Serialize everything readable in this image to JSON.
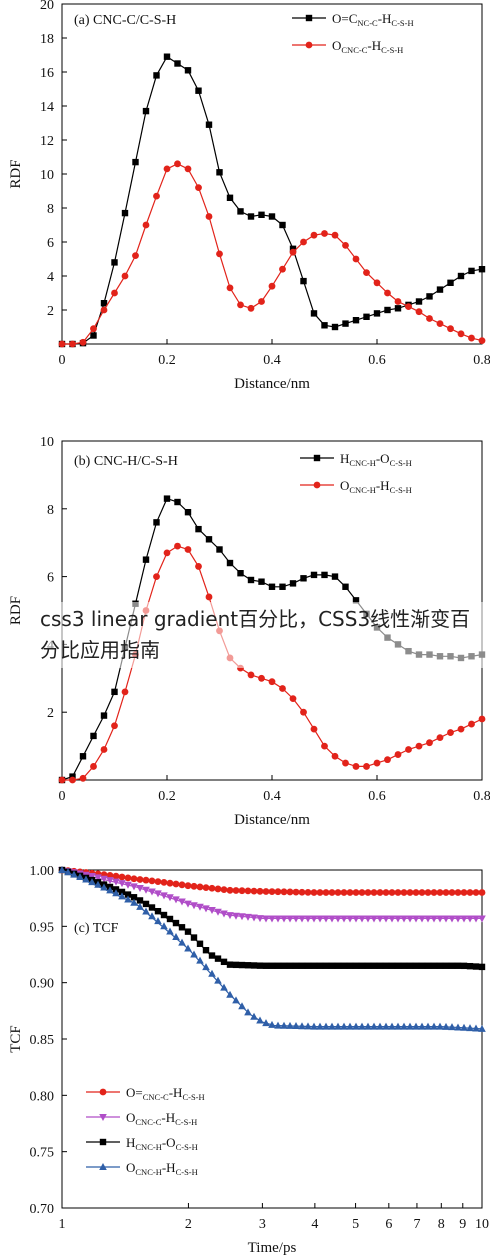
{
  "colors": {
    "black": "#000000",
    "red": "#e2231a",
    "magenta": "#b04ec8",
    "blue": "#2f5fa8"
  },
  "overlay_text": "css3 linear gradient百分比，CSS3线性渐变百分比应用指南",
  "chart_data": [
    {
      "type": "line",
      "title": "(a) CNC-C/C-S-H",
      "xlabel": "Distance/nm",
      "ylabel": "RDF",
      "xlim": [
        0,
        0.8
      ],
      "ylim": [
        0,
        20
      ],
      "xticks": [
        "0",
        "0.2",
        "0.4",
        "0.6",
        "0.8"
      ],
      "yticks": [
        "2",
        "4",
        "6",
        "8",
        "10",
        "12",
        "14",
        "16",
        "18",
        "20"
      ],
      "legend_position": "top-right",
      "series": [
        {
          "name": "O=C_NC-C-H_C-S-H",
          "legend": {
            "main": "O=C",
            "sub1": "NC-C",
            "mid": "-H",
            "sub2": "C-S-H"
          },
          "color": "black",
          "marker": "square",
          "x": [
            0.0,
            0.02,
            0.04,
            0.06,
            0.08,
            0.1,
            0.12,
            0.14,
            0.16,
            0.18,
            0.2,
            0.22,
            0.24,
            0.26,
            0.28,
            0.3,
            0.32,
            0.34,
            0.36,
            0.38,
            0.4,
            0.42,
            0.44,
            0.46,
            0.48,
            0.5,
            0.52,
            0.54,
            0.56,
            0.58,
            0.6,
            0.62,
            0.64,
            0.66,
            0.68,
            0.7,
            0.72,
            0.74,
            0.76,
            0.78,
            0.8
          ],
          "y": [
            0,
            0,
            0.05,
            0.5,
            2.4,
            4.8,
            7.7,
            10.7,
            13.7,
            15.8,
            16.9,
            16.5,
            16.1,
            14.9,
            12.9,
            10.1,
            8.6,
            7.8,
            7.5,
            7.6,
            7.5,
            7.0,
            5.6,
            3.7,
            1.8,
            1.1,
            1.0,
            1.2,
            1.4,
            1.6,
            1.8,
            2.0,
            2.1,
            2.3,
            2.5,
            2.8,
            3.2,
            3.6,
            4.0,
            4.3,
            4.4
          ]
        },
        {
          "name": "O_CNC-C-H_C-S-H",
          "legend": {
            "main": "O",
            "sub1": "CNC-C",
            "mid": "-H",
            "sub2": "C-S-H"
          },
          "color": "red",
          "marker": "circle",
          "x": [
            0.0,
            0.02,
            0.04,
            0.06,
            0.08,
            0.1,
            0.12,
            0.14,
            0.16,
            0.18,
            0.2,
            0.22,
            0.24,
            0.26,
            0.28,
            0.3,
            0.32,
            0.34,
            0.36,
            0.38,
            0.4,
            0.42,
            0.44,
            0.46,
            0.48,
            0.5,
            0.52,
            0.54,
            0.56,
            0.58,
            0.6,
            0.62,
            0.64,
            0.66,
            0.68,
            0.7,
            0.72,
            0.74,
            0.76,
            0.78,
            0.8
          ],
          "y": [
            0,
            0,
            0.1,
            0.9,
            2.0,
            3.0,
            4.0,
            5.2,
            7.0,
            8.7,
            10.3,
            10.6,
            10.3,
            9.2,
            7.5,
            5.3,
            3.3,
            2.3,
            2.1,
            2.5,
            3.4,
            4.4,
            5.4,
            6.0,
            6.4,
            6.5,
            6.4,
            5.8,
            5.0,
            4.2,
            3.6,
            3.0,
            2.5,
            2.2,
            1.9,
            1.5,
            1.2,
            0.9,
            0.6,
            0.35,
            0.2
          ]
        }
      ]
    },
    {
      "type": "line",
      "title": "(b) CNC-H/C-S-H",
      "xlabel": "Distance/nm",
      "ylabel": "RDF",
      "xlim": [
        0,
        0.8
      ],
      "ylim": [
        0,
        10
      ],
      "xticks": [
        "0",
        "0.2",
        "0.4",
        "0.6",
        "0.8"
      ],
      "yticks": [
        "2",
        "4",
        "6",
        "8",
        "10"
      ],
      "legend_position": "top-right",
      "series": [
        {
          "name": "H_CNC-H-O_C-S-H",
          "legend": {
            "main": "H",
            "sub1": "CNC-H",
            "mid": "-O",
            "sub2": "C-S-H"
          },
          "color": "black",
          "marker": "square",
          "x": [
            0.0,
            0.02,
            0.04,
            0.06,
            0.08,
            0.1,
            0.12,
            0.14,
            0.16,
            0.18,
            0.2,
            0.22,
            0.24,
            0.26,
            0.28,
            0.3,
            0.32,
            0.34,
            0.36,
            0.38,
            0.4,
            0.42,
            0.44,
            0.46,
            0.48,
            0.5,
            0.52,
            0.54,
            0.56,
            0.58,
            0.6,
            0.62,
            0.64,
            0.66,
            0.68,
            0.7,
            0.72,
            0.74,
            0.76,
            0.78,
            0.8
          ],
          "y": [
            0,
            0.1,
            0.7,
            1.3,
            1.9,
            2.6,
            3.9,
            5.2,
            6.5,
            7.6,
            8.3,
            8.2,
            7.9,
            7.4,
            7.1,
            6.8,
            6.4,
            6.1,
            5.9,
            5.85,
            5.7,
            5.7,
            5.8,
            5.95,
            6.05,
            6.05,
            6.0,
            5.7,
            5.3,
            4.9,
            4.5,
            4.2,
            4.0,
            3.8,
            3.7,
            3.7,
            3.65,
            3.65,
            3.6,
            3.65,
            3.7
          ]
        },
        {
          "name": "O_CNC-H-H_C-S-H",
          "legend": {
            "main": "O",
            "sub1": "CNC-H",
            "mid": "-H",
            "sub2": "C-S-H"
          },
          "color": "red",
          "marker": "circle",
          "x": [
            0.0,
            0.02,
            0.04,
            0.06,
            0.08,
            0.1,
            0.12,
            0.14,
            0.16,
            0.18,
            0.2,
            0.22,
            0.24,
            0.26,
            0.28,
            0.3,
            0.32,
            0.34,
            0.36,
            0.38,
            0.4,
            0.42,
            0.44,
            0.46,
            0.48,
            0.5,
            0.52,
            0.54,
            0.56,
            0.58,
            0.6,
            0.62,
            0.64,
            0.66,
            0.68,
            0.7,
            0.72,
            0.74,
            0.76,
            0.78,
            0.8
          ],
          "y": [
            0,
            0,
            0.05,
            0.4,
            0.9,
            1.6,
            2.6,
            3.7,
            5.0,
            6.0,
            6.7,
            6.9,
            6.8,
            6.3,
            5.4,
            4.4,
            3.6,
            3.3,
            3.1,
            3.0,
            2.9,
            2.7,
            2.4,
            2.0,
            1.5,
            1.0,
            0.7,
            0.5,
            0.4,
            0.4,
            0.5,
            0.6,
            0.75,
            0.9,
            1.0,
            1.1,
            1.25,
            1.4,
            1.5,
            1.65,
            1.8
          ]
        }
      ]
    },
    {
      "type": "line",
      "title": "(c) TCF",
      "xlabel": "Time/ps",
      "ylabel": "TCF",
      "xscale": "log",
      "xlim": [
        1,
        10
      ],
      "ylim": [
        0.7,
        1.0
      ],
      "xticks": [
        "1",
        "2",
        "3",
        "4",
        "5",
        "6",
        "7",
        "8",
        "9",
        "10"
      ],
      "yticks": [
        "0.70",
        "0.75",
        "0.80",
        "0.85",
        "0.90",
        "0.95",
        "1.00"
      ],
      "legend_position": "bottom-left",
      "series": [
        {
          "name": "O=_CNC-C-H_C-S-H",
          "legend": {
            "main": "O=",
            "sub1": "CNC-C",
            "mid": "-H",
            "sub2": "C-S-H"
          },
          "color": "red",
          "marker": "circle",
          "x": [
            1,
            1.5,
            2,
            2.5,
            3,
            4,
            5,
            6,
            7,
            8,
            9,
            10
          ],
          "y": [
            1.0,
            0.992,
            0.986,
            0.982,
            0.981,
            0.98,
            0.98,
            0.98,
            0.98,
            0.98,
            0.98,
            0.98
          ]
        },
        {
          "name": "O_CNC-C-H_C-S-H",
          "legend": {
            "main": "O",
            "sub1": "CNC-C",
            "mid": "-H",
            "sub2": "C-S-H"
          },
          "color": "magenta",
          "marker": "triangle-down",
          "x": [
            1,
            1.5,
            2,
            2.5,
            3,
            4,
            5,
            6,
            7,
            8,
            9,
            10
          ],
          "y": [
            1.0,
            0.985,
            0.97,
            0.96,
            0.957,
            0.957,
            0.957,
            0.957,
            0.957,
            0.957,
            0.957,
            0.957
          ]
        },
        {
          "name": "H_CNC-H-O_C-S-H",
          "legend": {
            "main": "H",
            "sub1": "CNC-H",
            "mid": "-O",
            "sub2": "C-S-H"
          },
          "color": "black",
          "marker": "square",
          "x": [
            1,
            1.5,
            2,
            2.25,
            2.5,
            3,
            4,
            5,
            6,
            7,
            8,
            9,
            10
          ],
          "y": [
            1.0,
            0.975,
            0.945,
            0.925,
            0.916,
            0.915,
            0.915,
            0.915,
            0.915,
            0.915,
            0.915,
            0.915,
            0.914
          ]
        },
        {
          "name": "O_CNC-H-H_C-S-H",
          "legend": {
            "main": "O",
            "sub1": "CNC-H",
            "mid": "-H",
            "sub2": "C-S-H"
          },
          "color": "blue",
          "marker": "triangle-up",
          "x": [
            1,
            1.5,
            2,
            2.5,
            2.8,
            3,
            3.2,
            4,
            5,
            6,
            7,
            8,
            9,
            10
          ],
          "y": [
            1.0,
            0.97,
            0.93,
            0.89,
            0.872,
            0.865,
            0.862,
            0.861,
            0.861,
            0.861,
            0.861,
            0.861,
            0.86,
            0.859
          ]
        }
      ]
    }
  ]
}
